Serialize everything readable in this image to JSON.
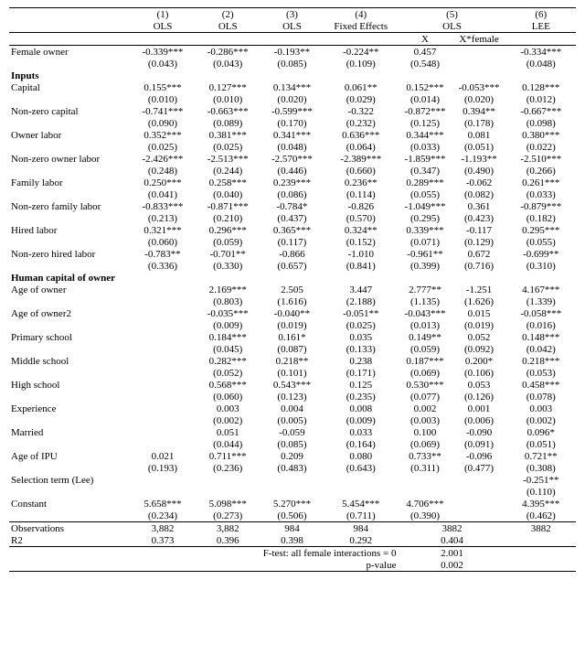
{
  "header": {
    "colnums": [
      "(1)",
      "(2)",
      "(3)",
      "(4)",
      "(5)",
      "(6)"
    ],
    "methods": [
      "OLS",
      "OLS",
      "OLS",
      "Fixed Effects",
      "OLS",
      "LEE"
    ],
    "sub5a": "X",
    "sub5b": "X*female"
  },
  "rows": [
    {
      "label": "Female owner",
      "v": [
        "-0.339***",
        "-0.286***",
        "-0.193**",
        "-0.224**",
        "0.457",
        "",
        "-0.334***"
      ],
      "se": [
        "(0.043)",
        "(0.043)",
        "(0.085)",
        "(0.109)",
        "(0.548)",
        "",
        "(0.048)"
      ]
    },
    {
      "section": "Inputs"
    },
    {
      "label": "Capital",
      "v": [
        "0.155***",
        "0.127***",
        "0.134***",
        "0.061**",
        "0.152***",
        "-0.053***",
        "0.128***"
      ],
      "se": [
        "(0.010)",
        "(0.010)",
        "(0.020)",
        "(0.029)",
        "(0.014)",
        "(0.020)",
        "(0.012)"
      ]
    },
    {
      "label": "Non-zero capital",
      "v": [
        "-0.741***",
        "-0.663***",
        "-0.599***",
        "-0.322",
        "-0.872***",
        "0.394**",
        "-0.667***"
      ],
      "se": [
        "(0.090)",
        "(0.089)",
        "(0.170)",
        "(0.232)",
        "(0.125)",
        "(0.178)",
        "(0.098)"
      ]
    },
    {
      "label": "Owner labor",
      "v": [
        "0.352***",
        "0.381***",
        "0.341***",
        "0.636***",
        "0.344***",
        "0.081",
        "0.380***"
      ],
      "se": [
        "(0.025)",
        "(0.025)",
        "(0.048)",
        "(0.064)",
        "(0.033)",
        "(0.051)",
        "(0.022)"
      ]
    },
    {
      "label": "Non-zero owner labor",
      "v": [
        "-2.426***",
        "-2.513***",
        "-2.570***",
        "-2.389***",
        "-1.859***",
        "-1.193**",
        "-2.510***"
      ],
      "se": [
        "(0.248)",
        "(0.244)",
        "(0.446)",
        "(0.660)",
        "(0.347)",
        "(0.490)",
        "(0.266)"
      ]
    },
    {
      "label": "Family labor",
      "v": [
        "0.250***",
        "0.258***",
        "0.239***",
        "0.236**",
        "0.289***",
        "-0.062",
        "0.261***"
      ],
      "se": [
        "(0.041)",
        "(0.040)",
        "(0.086)",
        "(0.114)",
        "(0.055)",
        "(0.082)",
        "(0.033)"
      ]
    },
    {
      "label": "Non-zero family labor",
      "v": [
        "-0.833***",
        "-0.871***",
        "-0.784*",
        "-0.826",
        "-1.049***",
        "0.361",
        "-0.879***"
      ],
      "se": [
        "(0.213)",
        "(0.210)",
        "(0.437)",
        "(0.570)",
        "(0.295)",
        "(0.423)",
        "(0.182)"
      ]
    },
    {
      "label": "Hired labor",
      "v": [
        "0.321***",
        "0.296***",
        "0.365***",
        "0.324**",
        "0.339***",
        "-0.117",
        "0.295***"
      ],
      "se": [
        "(0.060)",
        "(0.059)",
        "(0.117)",
        "(0.152)",
        "(0.071)",
        "(0.129)",
        "(0.055)"
      ]
    },
    {
      "label": "Non-zero hired labor",
      "v": [
        "-0.783**",
        "-0.701**",
        "-0.866",
        "-1.010",
        "-0.961**",
        "0.672",
        "-0.699**"
      ],
      "se": [
        "(0.336)",
        "(0.330)",
        "(0.657)",
        "(0.841)",
        "(0.399)",
        "(0.716)",
        "(0.310)"
      ]
    },
    {
      "section": "Human capital of owner"
    },
    {
      "label": "Age of owner",
      "v": [
        "",
        "2.169***",
        "2.505",
        "3.447",
        "2.777**",
        "-1.251",
        "4.167***"
      ],
      "se": [
        "",
        "(0.803)",
        "(1.616)",
        "(2.188)",
        "(1.135)",
        "(1.626)",
        "(1.339)"
      ]
    },
    {
      "label": "Age of owner2",
      "v": [
        "",
        "-0.035***",
        "-0.040**",
        "-0.051**",
        "-0.043***",
        "0.015",
        "-0.058***"
      ],
      "se": [
        "",
        "(0.009)",
        "(0.019)",
        "(0.025)",
        "(0.013)",
        "(0.019)",
        "(0.016)"
      ]
    },
    {
      "label": "Primary school",
      "v": [
        "",
        "0.184***",
        "0.161*",
        "0.035",
        "0.149**",
        "0.052",
        "0.148***"
      ],
      "se": [
        "",
        "(0.045)",
        "(0.087)",
        "(0.133)",
        "(0.059)",
        "(0.092)",
        "(0.042)"
      ]
    },
    {
      "label": "Middle school",
      "v": [
        "",
        "0.282***",
        "0.218**",
        "0.238",
        "0.187***",
        "0.200*",
        "0.218***"
      ],
      "se": [
        "",
        "(0.052)",
        "(0.101)",
        "(0.171)",
        "(0.069)",
        "(0.106)",
        "(0.053)"
      ]
    },
    {
      "label": "High school",
      "v": [
        "",
        "0.568***",
        "0.543***",
        "0.125",
        "0.530***",
        "0.053",
        "0.458***"
      ],
      "se": [
        "",
        "(0.060)",
        "(0.123)",
        "(0.235)",
        "(0.077)",
        "(0.126)",
        "(0.078)"
      ]
    },
    {
      "label": "Experience",
      "v": [
        "",
        "0.003",
        "0.004",
        "0.008",
        "0.002",
        "0.001",
        "0.003"
      ],
      "se": [
        "",
        "(0.002)",
        "(0.005)",
        "(0.009)",
        "(0.003)",
        "(0.006)",
        "(0.002)"
      ]
    },
    {
      "label": "Married",
      "v": [
        "",
        "0.051",
        "-0.059",
        "0.033",
        "0.100",
        "-0.090",
        "0.096*"
      ],
      "se": [
        "",
        "(0.044)",
        "(0.085)",
        "(0.164)",
        "(0.069)",
        "(0.091)",
        "(0.051)"
      ]
    },
    {
      "label": "Age of IPU",
      "v": [
        "0.021",
        "0.711***",
        "0.209",
        "0.080",
        "0.733**",
        "-0.096",
        "0.721**"
      ],
      "se": [
        "(0.193)",
        "(0.236)",
        "(0.483)",
        "(0.643)",
        "(0.311)",
        "(0.477)",
        "(0.308)"
      ]
    },
    {
      "label": "Selection term (Lee)",
      "v": [
        "",
        "",
        "",
        "",
        "",
        "",
        "-0.251**"
      ],
      "se": [
        "",
        "",
        "",
        "",
        "",
        "",
        "(0.110)"
      ]
    },
    {
      "label": "Constant",
      "v": [
        "5.658***",
        "5.098***",
        "5.270***",
        "5.454***",
        "4.706***",
        "",
        "4.395***"
      ],
      "se": [
        "(0.234)",
        "(0.273)",
        "(0.506)",
        "(0.711)",
        "(0.390)",
        "",
        "(0.462)"
      ]
    }
  ],
  "footer": {
    "obs_label": "Observations",
    "obs": [
      "3,882",
      "3,882",
      "984",
      "984",
      "3882",
      "3882"
    ],
    "r2_label": "R2",
    "r2": [
      "0.373",
      "0.396",
      "0.398",
      "0.292",
      "0.404",
      ""
    ],
    "ftest_label": "F-test: all female interactions = 0",
    "ftest_value": "2.001",
    "pvalue_label": "p-value",
    "pvalue_value": "0.002"
  }
}
